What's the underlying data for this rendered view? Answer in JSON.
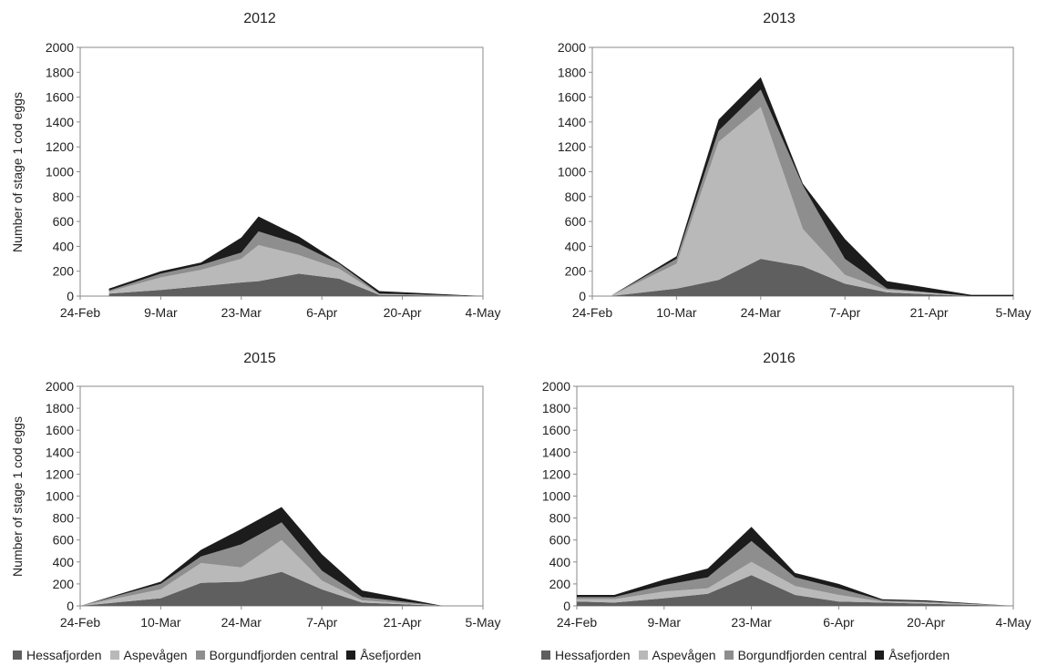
{
  "colors": {
    "Hessafjorden": "#5f5f5f",
    "Aspevågen": "#b9b9b9",
    "Borgundfjorden central": "#8e8e8e",
    "Åsefjorden": "#1c1c1c"
  },
  "legend_entries": [
    "Hessafjorden",
    "Aspevågen",
    "Borgundfjorden central",
    "Åsefjorden"
  ],
  "chart_data": [
    {
      "type": "area",
      "stacked": true,
      "title": "2012",
      "ylabel": "Number of stage 1 cod eggs",
      "ylim": [
        0,
        2000
      ],
      "yticks": [
        0,
        200,
        400,
        600,
        800,
        1000,
        1200,
        1400,
        1600,
        1800,
        2000
      ],
      "xlim": [
        "2012-02-24",
        "2012-05-04"
      ],
      "xtick_labels": [
        "24-Feb",
        "9-Mar",
        "23-Mar",
        "6-Apr",
        "20-Apr",
        "4-May"
      ],
      "x": [
        "2012-02-29",
        "2012-03-09",
        "2012-03-16",
        "2012-03-23",
        "2012-03-26",
        "2012-04-02",
        "2012-04-09",
        "2012-04-16",
        "2012-05-04"
      ],
      "series": [
        {
          "name": "Hessafjorden",
          "values": [
            20,
            50,
            80,
            110,
            120,
            180,
            140,
            10,
            0
          ]
        },
        {
          "name": "Aspevågen",
          "values": [
            15,
            100,
            130,
            190,
            290,
            150,
            80,
            5,
            0
          ]
        },
        {
          "name": "Borgundfjorden central",
          "values": [
            10,
            30,
            40,
            50,
            110,
            90,
            40,
            5,
            0
          ]
        },
        {
          "name": "Åsefjorden",
          "values": [
            15,
            20,
            20,
            120,
            120,
            60,
            10,
            20,
            0
          ]
        }
      ],
      "grid": false
    },
    {
      "type": "area",
      "stacked": true,
      "title": "2013",
      "ylim": [
        0,
        2000
      ],
      "yticks": [
        0,
        200,
        400,
        600,
        800,
        1000,
        1200,
        1400,
        1600,
        1800,
        2000
      ],
      "xlim": [
        "2013-02-24",
        "2013-05-05"
      ],
      "xtick_labels": [
        "24-Feb",
        "10-Mar",
        "24-Mar",
        "7-Apr",
        "21-Apr",
        "5-May"
      ],
      "x": [
        "2013-02-27",
        "2013-03-10",
        "2013-03-17",
        "2013-03-24",
        "2013-03-31",
        "2013-04-07",
        "2013-04-14",
        "2013-04-28",
        "2013-05-05"
      ],
      "series": [
        {
          "name": "Hessafjorden",
          "values": [
            0,
            60,
            130,
            300,
            240,
            100,
            30,
            0,
            0
          ]
        },
        {
          "name": "Aspevågen",
          "values": [
            0,
            200,
            1110,
            1220,
            300,
            70,
            20,
            0,
            0
          ]
        },
        {
          "name": "Borgundfjorden central",
          "values": [
            0,
            40,
            90,
            140,
            350,
            130,
            10,
            0,
            0
          ]
        },
        {
          "name": "Åsefjorden",
          "values": [
            0,
            20,
            90,
            100,
            15,
            160,
            60,
            10,
            10
          ]
        }
      ],
      "grid": false
    },
    {
      "type": "area",
      "stacked": true,
      "title": "2015",
      "ylabel": "Number of stage 1 cod eggs",
      "ylim": [
        0,
        2000
      ],
      "yticks": [
        0,
        200,
        400,
        600,
        800,
        1000,
        1200,
        1400,
        1600,
        1800,
        2000
      ],
      "xlim": [
        "2015-02-24",
        "2015-05-05"
      ],
      "xtick_labels": [
        "24-Feb",
        "10-Mar",
        "24-Mar",
        "7-Apr",
        "21-Apr",
        "5-May"
      ],
      "x": [
        "2015-02-24",
        "2015-03-10",
        "2015-03-17",
        "2015-03-24",
        "2015-03-31",
        "2015-04-07",
        "2015-04-14",
        "2015-04-28",
        "2015-05-05"
      ],
      "series": [
        {
          "name": "Hessafjorden",
          "values": [
            0,
            70,
            210,
            220,
            310,
            150,
            30,
            0,
            0
          ]
        },
        {
          "name": "Aspevågen",
          "values": [
            0,
            80,
            180,
            130,
            290,
            80,
            20,
            0,
            0
          ]
        },
        {
          "name": "Borgundfjorden central",
          "values": [
            0,
            50,
            60,
            210,
            160,
            90,
            30,
            0,
            0
          ]
        },
        {
          "name": "Åsefjorden",
          "values": [
            0,
            20,
            60,
            140,
            140,
            150,
            60,
            0,
            0
          ]
        }
      ],
      "grid": false
    },
    {
      "type": "area",
      "stacked": true,
      "title": "2016",
      "ylim": [
        0,
        2000
      ],
      "yticks": [
        0,
        200,
        400,
        600,
        800,
        1000,
        1200,
        1400,
        1600,
        1800,
        2000
      ],
      "xlim": [
        "2016-02-24",
        "2016-05-04"
      ],
      "xtick_labels": [
        "24-Feb",
        "9-Mar",
        "23-Mar",
        "6-Apr",
        "20-Apr",
        "4-May"
      ],
      "x": [
        "2016-02-24",
        "2016-03-01",
        "2016-03-09",
        "2016-03-16",
        "2016-03-23",
        "2016-03-30",
        "2016-04-06",
        "2016-04-13",
        "2016-04-20",
        "2016-05-04"
      ],
      "series": [
        {
          "name": "Hessafjorden",
          "values": [
            40,
            30,
            70,
            110,
            280,
            100,
            40,
            30,
            20,
            0
          ]
        },
        {
          "name": "Aspevågen",
          "values": [
            20,
            30,
            60,
            50,
            120,
            80,
            60,
            10,
            10,
            0
          ]
        },
        {
          "name": "Borgundfjorden central",
          "values": [
            20,
            20,
            60,
            100,
            190,
            80,
            60,
            10,
            10,
            0
          ]
        },
        {
          "name": "Åsefjorden",
          "values": [
            20,
            20,
            50,
            80,
            130,
            40,
            40,
            10,
            10,
            0
          ]
        }
      ],
      "grid": false
    }
  ]
}
